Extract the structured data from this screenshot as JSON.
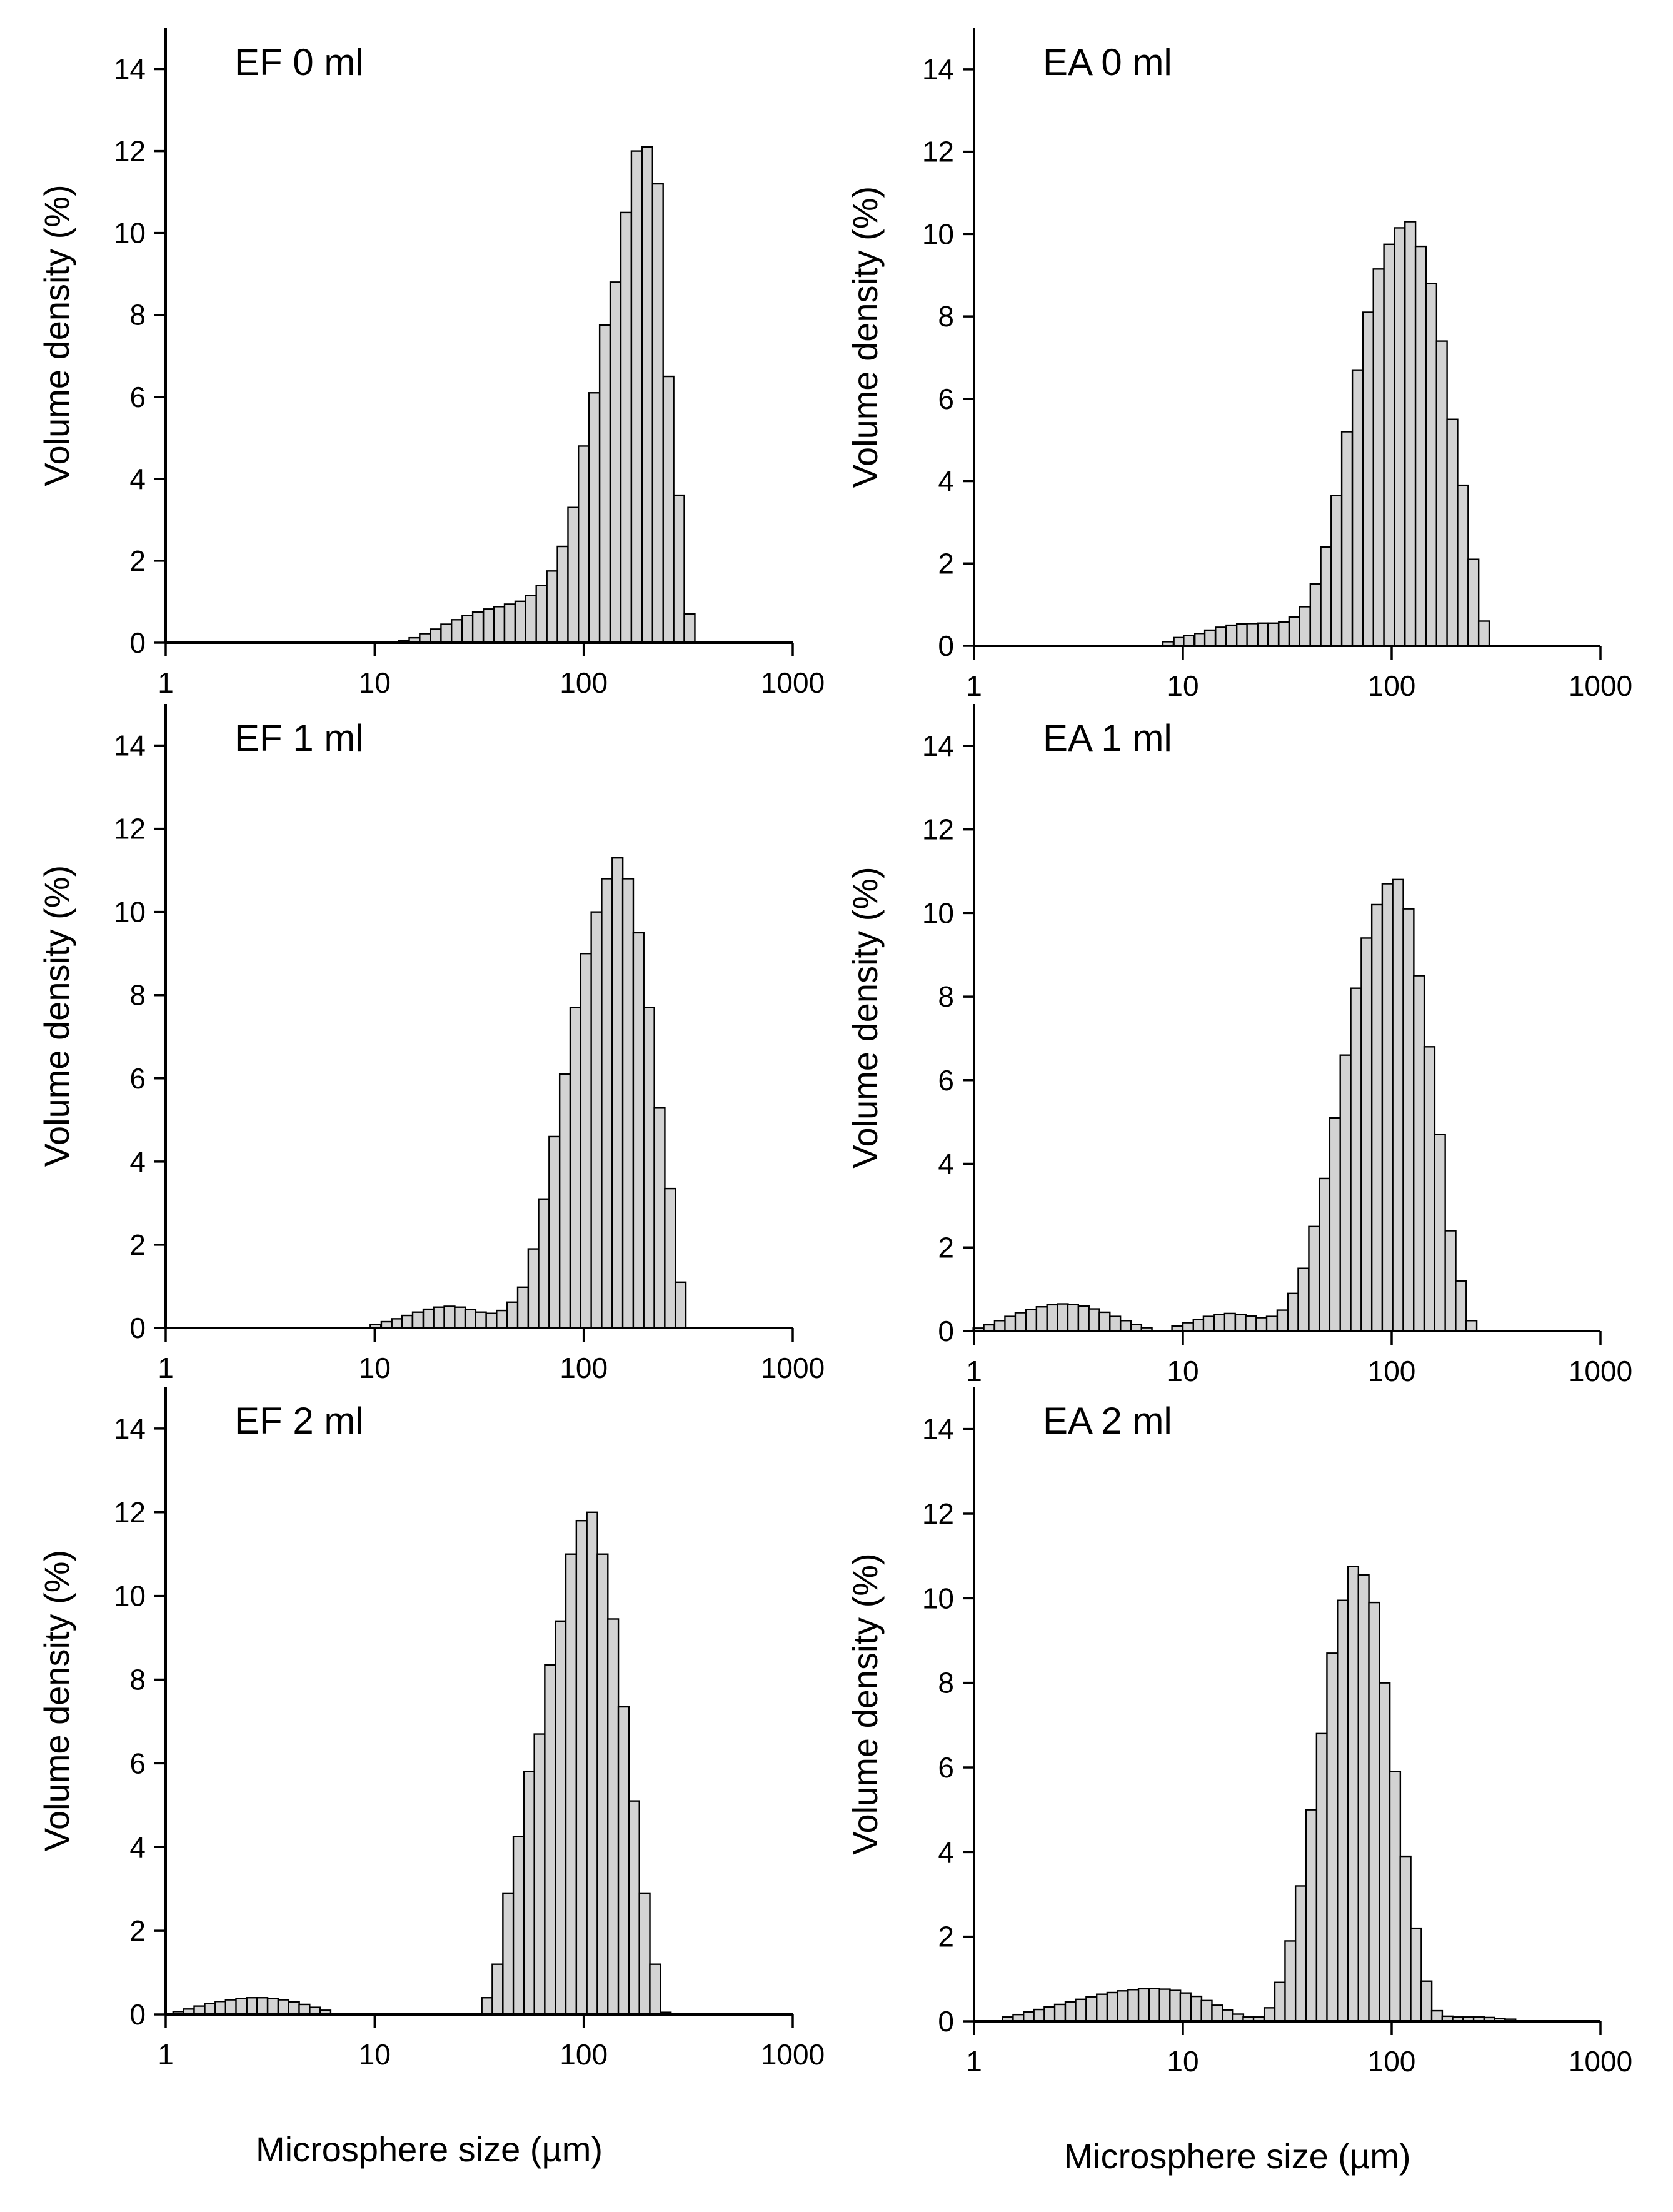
{
  "figure": {
    "x_axis_label": "Microsphere size (µm)",
    "y_axis_label": "Volume density (%)"
  },
  "chart_data": [
    {
      "type": "bar",
      "title": "EF 0 ml",
      "xscale": "log",
      "xlim": [
        1,
        1000
      ],
      "ylim": [
        0,
        15
      ],
      "xticks": [
        "1",
        "10",
        "100",
        "1000"
      ],
      "yticks": [
        "0",
        "2",
        "4",
        "6",
        "8",
        "10",
        "12",
        "14"
      ],
      "ylabel": "Volume density (%)",
      "xlabel": "Microsphere size (µm)",
      "bins": [
        {
          "x": 13.8,
          "y": 0.05
        },
        {
          "x": 15.5,
          "y": 0.12
        },
        {
          "x": 17.4,
          "y": 0.22
        },
        {
          "x": 19.6,
          "y": 0.33
        },
        {
          "x": 22.0,
          "y": 0.45
        },
        {
          "x": 24.7,
          "y": 0.56
        },
        {
          "x": 27.8,
          "y": 0.66
        },
        {
          "x": 31.2,
          "y": 0.75
        },
        {
          "x": 35.1,
          "y": 0.82
        },
        {
          "x": 39.4,
          "y": 0.88
        },
        {
          "x": 44.3,
          "y": 0.94
        },
        {
          "x": 49.8,
          "y": 1.01
        },
        {
          "x": 55.9,
          "y": 1.15
        },
        {
          "x": 62.8,
          "y": 1.4
        },
        {
          "x": 70.6,
          "y": 1.75
        },
        {
          "x": 79.3,
          "y": 2.35
        },
        {
          "x": 89.1,
          "y": 3.3
        },
        {
          "x": 100,
          "y": 4.8
        },
        {
          "x": 112.4,
          "y": 6.1
        },
        {
          "x": 126.3,
          "y": 7.75
        },
        {
          "x": 141.9,
          "y": 8.8
        },
        {
          "x": 159.5,
          "y": 10.5
        },
        {
          "x": 179.2,
          "y": 12.0
        },
        {
          "x": 201.4,
          "y": 12.1
        },
        {
          "x": 226.3,
          "y": 11.2
        },
        {
          "x": 254.3,
          "y": 6.5
        },
        {
          "x": 285.7,
          "y": 3.6
        },
        {
          "x": 321,
          "y": 0.7
        }
      ]
    },
    {
      "type": "bar",
      "title": "EA 0 ml",
      "xscale": "log",
      "xlim": [
        1,
        1000
      ],
      "ylim": [
        0,
        15
      ],
      "xticks": [
        "1",
        "10",
        "100",
        "1000"
      ],
      "yticks": [
        "0",
        "2",
        "4",
        "6",
        "8",
        "10",
        "12",
        "14"
      ],
      "ylabel": "Volume density (%)",
      "xlabel": "Microsphere size (µm)",
      "bins": [
        {
          "x": 8.5,
          "y": 0.1
        },
        {
          "x": 9.6,
          "y": 0.2
        },
        {
          "x": 10.7,
          "y": 0.25
        },
        {
          "x": 12.1,
          "y": 0.3
        },
        {
          "x": 13.5,
          "y": 0.38
        },
        {
          "x": 15.2,
          "y": 0.45
        },
        {
          "x": 17.1,
          "y": 0.5
        },
        {
          "x": 19.2,
          "y": 0.53
        },
        {
          "x": 21.5,
          "y": 0.54
        },
        {
          "x": 24.2,
          "y": 0.55
        },
        {
          "x": 27.1,
          "y": 0.55
        },
        {
          "x": 30.5,
          "y": 0.58
        },
        {
          "x": 34.2,
          "y": 0.7
        },
        {
          "x": 38.4,
          "y": 0.95
        },
        {
          "x": 43.2,
          "y": 1.5
        },
        {
          "x": 48.5,
          "y": 2.4
        },
        {
          "x": 54.4,
          "y": 3.65
        },
        {
          "x": 61.1,
          "y": 5.2
        },
        {
          "x": 68.7,
          "y": 6.7
        },
        {
          "x": 77.1,
          "y": 8.1
        },
        {
          "x": 86.6,
          "y": 9.15
        },
        {
          "x": 97.3,
          "y": 9.75
        },
        {
          "x": 109.2,
          "y": 10.15
        },
        {
          "x": 122.7,
          "y": 10.3
        },
        {
          "x": 137.8,
          "y": 9.7
        },
        {
          "x": 154.8,
          "y": 8.8
        },
        {
          "x": 173.8,
          "y": 7.4
        },
        {
          "x": 195.2,
          "y": 5.5
        },
        {
          "x": 219.3,
          "y": 3.9
        },
        {
          "x": 246.3,
          "y": 2.1
        },
        {
          "x": 276.6,
          "y": 0.6
        }
      ]
    },
    {
      "type": "bar",
      "title": "EF 1 ml",
      "xscale": "log",
      "xlim": [
        1,
        1000
      ],
      "ylim": [
        0,
        15
      ],
      "xticks": [
        "1",
        "10",
        "100",
        "1000"
      ],
      "yticks": [
        "0",
        "2",
        "4",
        "6",
        "8",
        "10",
        "12",
        "14"
      ],
      "ylabel": "Volume density (%)",
      "xlabel": "Microsphere size (µm)",
      "bins": [
        {
          "x": 10.1,
          "y": 0.08
        },
        {
          "x": 11.4,
          "y": 0.15
        },
        {
          "x": 12.8,
          "y": 0.22
        },
        {
          "x": 14.3,
          "y": 0.3
        },
        {
          "x": 16.1,
          "y": 0.38
        },
        {
          "x": 18.1,
          "y": 0.45
        },
        {
          "x": 20.3,
          "y": 0.5
        },
        {
          "x": 22.8,
          "y": 0.52
        },
        {
          "x": 25.6,
          "y": 0.5
        },
        {
          "x": 28.7,
          "y": 0.44
        },
        {
          "x": 32.2,
          "y": 0.38
        },
        {
          "x": 36.2,
          "y": 0.35
        },
        {
          "x": 40.6,
          "y": 0.42
        },
        {
          "x": 45.6,
          "y": 0.62
        },
        {
          "x": 51.2,
          "y": 0.98
        },
        {
          "x": 57.5,
          "y": 1.9
        },
        {
          "x": 64.5,
          "y": 3.1
        },
        {
          "x": 72.4,
          "y": 4.6
        },
        {
          "x": 81.3,
          "y": 6.1
        },
        {
          "x": 91.3,
          "y": 7.7
        },
        {
          "x": 102.5,
          "y": 9.0
        },
        {
          "x": 115.1,
          "y": 10.0
        },
        {
          "x": 129.2,
          "y": 10.8
        },
        {
          "x": 145.1,
          "y": 11.3
        },
        {
          "x": 162.9,
          "y": 10.8
        },
        {
          "x": 182.9,
          "y": 9.5
        },
        {
          "x": 205.4,
          "y": 7.7
        },
        {
          "x": 230.6,
          "y": 5.3
        },
        {
          "x": 258.9,
          "y": 3.35
        },
        {
          "x": 290.7,
          "y": 1.1
        }
      ]
    },
    {
      "type": "bar",
      "title": "EA 1 ml",
      "xscale": "log",
      "xlim": [
        1,
        1000
      ],
      "ylim": [
        0,
        15
      ],
      "xticks": [
        "1",
        "10",
        "100",
        "1000"
      ],
      "yticks": [
        "0",
        "2",
        "4",
        "6",
        "8",
        "10",
        "12",
        "14"
      ],
      "ylabel": "Volume density (%)",
      "xlabel": "Microsphere size (µm)",
      "bins": [
        {
          "x": 1.05,
          "y": 0.07
        },
        {
          "x": 1.18,
          "y": 0.15
        },
        {
          "x": 1.33,
          "y": 0.25
        },
        {
          "x": 1.49,
          "y": 0.35
        },
        {
          "x": 1.67,
          "y": 0.44
        },
        {
          "x": 1.88,
          "y": 0.52
        },
        {
          "x": 2.11,
          "y": 0.58
        },
        {
          "x": 2.37,
          "y": 0.63
        },
        {
          "x": 2.66,
          "y": 0.65
        },
        {
          "x": 2.98,
          "y": 0.64
        },
        {
          "x": 3.35,
          "y": 0.6
        },
        {
          "x": 3.76,
          "y": 0.53
        },
        {
          "x": 4.22,
          "y": 0.45
        },
        {
          "x": 4.74,
          "y": 0.35
        },
        {
          "x": 5.33,
          "y": 0.25
        },
        {
          "x": 5.98,
          "y": 0.16
        },
        {
          "x": 6.71,
          "y": 0.08
        },
        {
          "x": 9.4,
          "y": 0.12
        },
        {
          "x": 10.6,
          "y": 0.2
        },
        {
          "x": 11.9,
          "y": 0.28
        },
        {
          "x": 13.3,
          "y": 0.35
        },
        {
          "x": 15.0,
          "y": 0.4
        },
        {
          "x": 16.8,
          "y": 0.42
        },
        {
          "x": 18.9,
          "y": 0.4
        },
        {
          "x": 21.2,
          "y": 0.36
        },
        {
          "x": 23.8,
          "y": 0.32
        },
        {
          "x": 26.7,
          "y": 0.35
        },
        {
          "x": 30.0,
          "y": 0.5
        },
        {
          "x": 33.7,
          "y": 0.9
        },
        {
          "x": 37.8,
          "y": 1.5
        },
        {
          "x": 42.5,
          "y": 2.5
        },
        {
          "x": 47.7,
          "y": 3.65
        },
        {
          "x": 53.5,
          "y": 5.1
        },
        {
          "x": 60.1,
          "y": 6.6
        },
        {
          "x": 67.5,
          "y": 8.2
        },
        {
          "x": 75.8,
          "y": 9.4
        },
        {
          "x": 85.1,
          "y": 10.2
        },
        {
          "x": 95.5,
          "y": 10.7
        },
        {
          "x": 107.2,
          "y": 10.8
        },
        {
          "x": 120.4,
          "y": 10.1
        },
        {
          "x": 135.1,
          "y": 8.5
        },
        {
          "x": 151.7,
          "y": 6.8
        },
        {
          "x": 170.3,
          "y": 4.7
        },
        {
          "x": 191.3,
          "y": 2.4
        },
        {
          "x": 214.7,
          "y": 1.2
        },
        {
          "x": 241.1,
          "y": 0.25
        }
      ]
    },
    {
      "type": "bar",
      "title": "EF 2 ml",
      "xscale": "log",
      "xlim": [
        1,
        1000
      ],
      "ylim": [
        0,
        15
      ],
      "xticks": [
        "1",
        "10",
        "100",
        "1000"
      ],
      "yticks": [
        "0",
        "2",
        "4",
        "6",
        "8",
        "10",
        "12",
        "14"
      ],
      "ylabel": "Volume density (%)",
      "xlabel": "Microsphere size (µm)",
      "bins": [
        {
          "x": 1.15,
          "y": 0.07
        },
        {
          "x": 1.29,
          "y": 0.13
        },
        {
          "x": 1.45,
          "y": 0.2
        },
        {
          "x": 1.63,
          "y": 0.26
        },
        {
          "x": 1.83,
          "y": 0.31
        },
        {
          "x": 2.05,
          "y": 0.35
        },
        {
          "x": 2.3,
          "y": 0.38
        },
        {
          "x": 2.59,
          "y": 0.4
        },
        {
          "x": 2.9,
          "y": 0.4
        },
        {
          "x": 3.26,
          "y": 0.38
        },
        {
          "x": 3.66,
          "y": 0.35
        },
        {
          "x": 4.11,
          "y": 0.3
        },
        {
          "x": 4.61,
          "y": 0.24
        },
        {
          "x": 5.18,
          "y": 0.17
        },
        {
          "x": 5.81,
          "y": 0.1
        },
        {
          "x": 34.5,
          "y": 0.4
        },
        {
          "x": 38.7,
          "y": 1.2
        },
        {
          "x": 43.5,
          "y": 2.9
        },
        {
          "x": 48.8,
          "y": 4.25
        },
        {
          "x": 54.8,
          "y": 5.8
        },
        {
          "x": 61.5,
          "y": 6.7
        },
        {
          "x": 69.0,
          "y": 8.35
        },
        {
          "x": 77.5,
          "y": 9.4
        },
        {
          "x": 87.0,
          "y": 11.0
        },
        {
          "x": 97.7,
          "y": 11.8
        },
        {
          "x": 109.7,
          "y": 12.0
        },
        {
          "x": 123.1,
          "y": 11.0
        },
        {
          "x": 138.2,
          "y": 9.45
        },
        {
          "x": 155.2,
          "y": 7.35
        },
        {
          "x": 174.2,
          "y": 5.1
        },
        {
          "x": 195.6,
          "y": 2.9
        },
        {
          "x": 219.6,
          "y": 1.2
        },
        {
          "x": 246.6,
          "y": 0.05
        }
      ]
    },
    {
      "type": "bar",
      "title": "EA 2 ml",
      "xscale": "log",
      "xlim": [
        1,
        1000
      ],
      "ylim": [
        0,
        15
      ],
      "xticks": [
        "1",
        "10",
        "100",
        "1000"
      ],
      "yticks": [
        "0",
        "2",
        "4",
        "6",
        "8",
        "10",
        "12",
        "14"
      ],
      "ylabel": "Volume density (%)",
      "xlabel": "Microsphere size (µm)",
      "bins": [
        {
          "x": 1.45,
          "y": 0.1
        },
        {
          "x": 1.63,
          "y": 0.16
        },
        {
          "x": 1.83,
          "y": 0.22
        },
        {
          "x": 2.05,
          "y": 0.28
        },
        {
          "x": 2.3,
          "y": 0.34
        },
        {
          "x": 2.58,
          "y": 0.4
        },
        {
          "x": 2.9,
          "y": 0.46
        },
        {
          "x": 3.25,
          "y": 0.52
        },
        {
          "x": 3.65,
          "y": 0.58
        },
        {
          "x": 4.1,
          "y": 0.64
        },
        {
          "x": 4.6,
          "y": 0.68
        },
        {
          "x": 5.16,
          "y": 0.72
        },
        {
          "x": 5.79,
          "y": 0.75
        },
        {
          "x": 6.5,
          "y": 0.77
        },
        {
          "x": 7.3,
          "y": 0.78
        },
        {
          "x": 8.19,
          "y": 0.76
        },
        {
          "x": 9.19,
          "y": 0.73
        },
        {
          "x": 10.3,
          "y": 0.67
        },
        {
          "x": 11.6,
          "y": 0.59
        },
        {
          "x": 13.0,
          "y": 0.49
        },
        {
          "x": 14.6,
          "y": 0.38
        },
        {
          "x": 16.4,
          "y": 0.27
        },
        {
          "x": 18.4,
          "y": 0.17
        },
        {
          "x": 20.6,
          "y": 0.1
        },
        {
          "x": 23.1,
          "y": 0.1
        },
        {
          "x": 26.0,
          "y": 0.32
        },
        {
          "x": 29.2,
          "y": 0.92
        },
        {
          "x": 32.7,
          "y": 1.9
        },
        {
          "x": 36.7,
          "y": 3.2
        },
        {
          "x": 41.2,
          "y": 5.0
        },
        {
          "x": 46.3,
          "y": 6.8
        },
        {
          "x": 51.9,
          "y": 8.7
        },
        {
          "x": 58.3,
          "y": 9.95
        },
        {
          "x": 65.4,
          "y": 10.75
        },
        {
          "x": 73.4,
          "y": 10.55
        },
        {
          "x": 82.4,
          "y": 9.9
        },
        {
          "x": 92.5,
          "y": 8.0
        },
        {
          "x": 103.8,
          "y": 5.9
        },
        {
          "x": 116.5,
          "y": 3.9
        },
        {
          "x": 130.8,
          "y": 2.2
        },
        {
          "x": 146.8,
          "y": 0.95
        },
        {
          "x": 164.8,
          "y": 0.25
        },
        {
          "x": 185,
          "y": 0.12
        },
        {
          "x": 207.6,
          "y": 0.1
        },
        {
          "x": 233.1,
          "y": 0.1
        },
        {
          "x": 261.6,
          "y": 0.1
        },
        {
          "x": 293.7,
          "y": 0.09
        },
        {
          "x": 329.6,
          "y": 0.07
        },
        {
          "x": 370,
          "y": 0.05
        }
      ]
    }
  ]
}
